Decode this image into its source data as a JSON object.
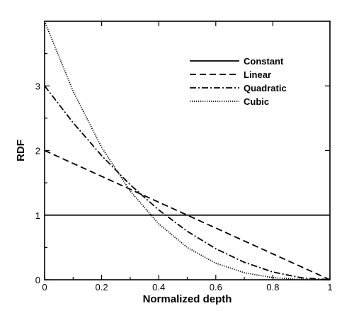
{
  "chart_data": {
    "type": "line",
    "xlabel": "Normalized depth",
    "ylabel": "RDF",
    "xlim": [
      0,
      1
    ],
    "ylim": [
      0,
      4
    ],
    "x_ticks": [
      0,
      0.2,
      0.4,
      0.6,
      0.8,
      1
    ],
    "x_tick_labels": [
      "0",
      "0.2",
      "0.4",
      "0.6",
      "0.8",
      "1"
    ],
    "y_ticks": [
      0,
      1,
      2,
      3
    ],
    "y_tick_labels": [
      "0",
      "1",
      "2",
      "3"
    ],
    "grid": false,
    "legend_position": "top-right",
    "x": [
      0,
      0.1,
      0.2,
      0.3,
      0.4,
      0.5,
      0.6,
      0.7,
      0.8,
      0.9,
      1
    ],
    "series": [
      {
        "name": "Constant",
        "style": "solid",
        "color": "#000000",
        "values": [
          1,
          1,
          1,
          1,
          1,
          1,
          1,
          1,
          1,
          1,
          1
        ]
      },
      {
        "name": "Linear",
        "style": "dashed",
        "color": "#000000",
        "values": [
          2,
          1.8,
          1.6,
          1.4,
          1.2,
          1.0,
          0.8,
          0.6,
          0.4,
          0.2,
          0
        ]
      },
      {
        "name": "Quadratic",
        "style": "dashdot",
        "color": "#000000",
        "values": [
          3,
          2.43,
          1.92,
          1.47,
          1.08,
          0.75,
          0.48,
          0.27,
          0.12,
          0.03,
          0
        ]
      },
      {
        "name": "Cubic",
        "style": "dotted",
        "color": "#888888",
        "values": [
          4,
          2.916,
          2.048,
          1.372,
          0.864,
          0.5,
          0.256,
          0.108,
          0.032,
          0.004,
          0
        ]
      }
    ]
  }
}
